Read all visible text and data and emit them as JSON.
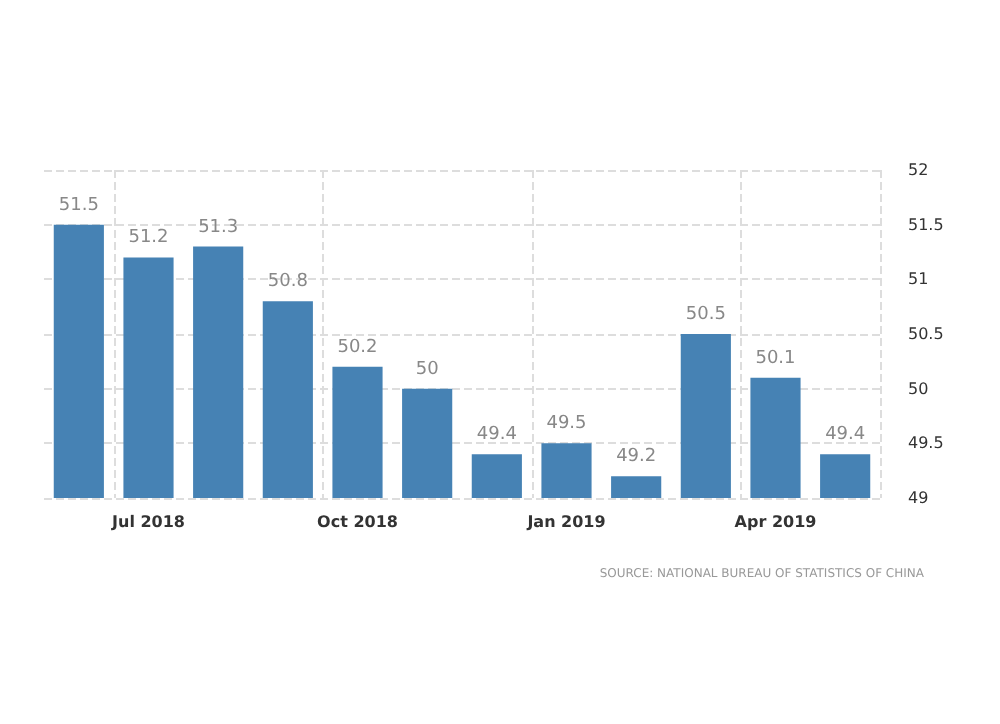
{
  "chart_data": {
    "type": "bar",
    "categories": [
      null,
      "Jul 2018",
      null,
      null,
      "Oct 2018",
      null,
      null,
      "Jan 2019",
      null,
      null,
      "Apr 2019",
      null
    ],
    "values": [
      51.5,
      51.2,
      51.3,
      50.8,
      50.2,
      50.0,
      49.4,
      49.5,
      49.2,
      50.5,
      50.1,
      49.4
    ],
    "color": "#4682b4",
    "ylim": [
      49,
      52
    ],
    "yticks": [
      49,
      49.5,
      50,
      50.5,
      51,
      51.5,
      52
    ],
    "grid": true,
    "data_labels": true,
    "annotations": [
      "SOURCE: NATIONAL BUREAU OF STATISTICS OF CHINA"
    ]
  }
}
